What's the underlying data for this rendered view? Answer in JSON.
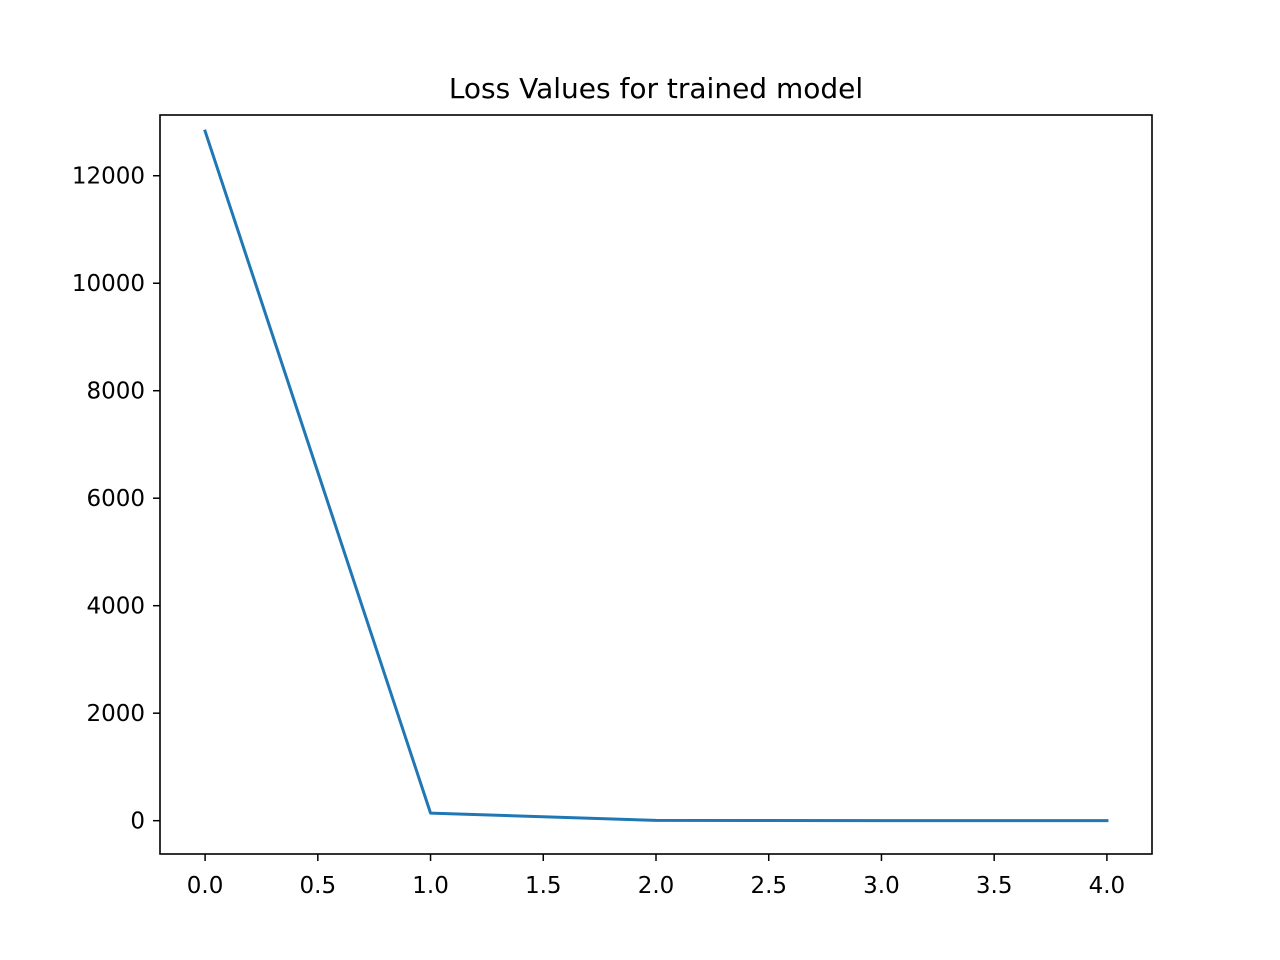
{
  "chart_data": {
    "type": "line",
    "title": "Loss Values for trained model",
    "xlabel": "",
    "ylabel": "",
    "xlim": [
      -0.2,
      4.2
    ],
    "ylim": [
      -620,
      13130
    ],
    "x_ticks": [
      0.0,
      0.5,
      1.0,
      1.5,
      2.0,
      2.5,
      3.0,
      3.5,
      4.0
    ],
    "x_tick_labels": [
      "0.0",
      "0.5",
      "1.0",
      "1.5",
      "2.0",
      "2.5",
      "3.0",
      "3.5",
      "4.0"
    ],
    "y_ticks": [
      0,
      2000,
      4000,
      6000,
      8000,
      10000,
      12000
    ],
    "y_tick_labels": [
      "0",
      "2000",
      "4000",
      "6000",
      "8000",
      "10000",
      "12000"
    ],
    "grid": false,
    "series": [
      {
        "color": "#1f77b4",
        "x": [
          0,
          1,
          2,
          3,
          4
        ],
        "y": [
          12830,
          140,
          5,
          2,
          1
        ]
      }
    ]
  }
}
